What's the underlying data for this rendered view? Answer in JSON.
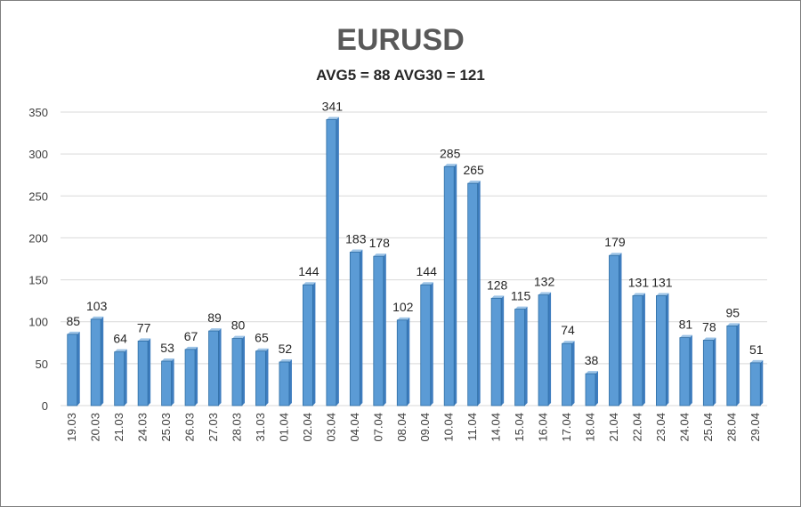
{
  "chart_data": {
    "type": "bar",
    "title": "EURUSD",
    "subtitle": "AVG5 = 88 AVG30 = 121",
    "categories": [
      "19.03",
      "20.03",
      "21.03",
      "24.03",
      "25.03",
      "26.03",
      "27.03",
      "28.03",
      "31.03",
      "01.04",
      "02.04",
      "03.04",
      "04.04",
      "07.04",
      "08.04",
      "09.04",
      "10.04",
      "11.04",
      "14.04",
      "15.04",
      "16.04",
      "17.04",
      "18.04",
      "21.04",
      "22.04",
      "23.04",
      "24.04",
      "25.04",
      "28.04",
      "29.04"
    ],
    "values": [
      85,
      103,
      64,
      77,
      53,
      67,
      89,
      80,
      65,
      52,
      144,
      341,
      183,
      178,
      102,
      144,
      285,
      265,
      128,
      115,
      132,
      74,
      38,
      179,
      131,
      131,
      81,
      78,
      95,
      51
    ],
    "ylim": [
      0,
      350
    ],
    "yticks": [
      0,
      50,
      100,
      150,
      200,
      250,
      300,
      350
    ],
    "grid": true,
    "bar_color": "#5b9bd5",
    "bar_edge_color": "#2e6da4",
    "xlabel": "",
    "ylabel": ""
  }
}
